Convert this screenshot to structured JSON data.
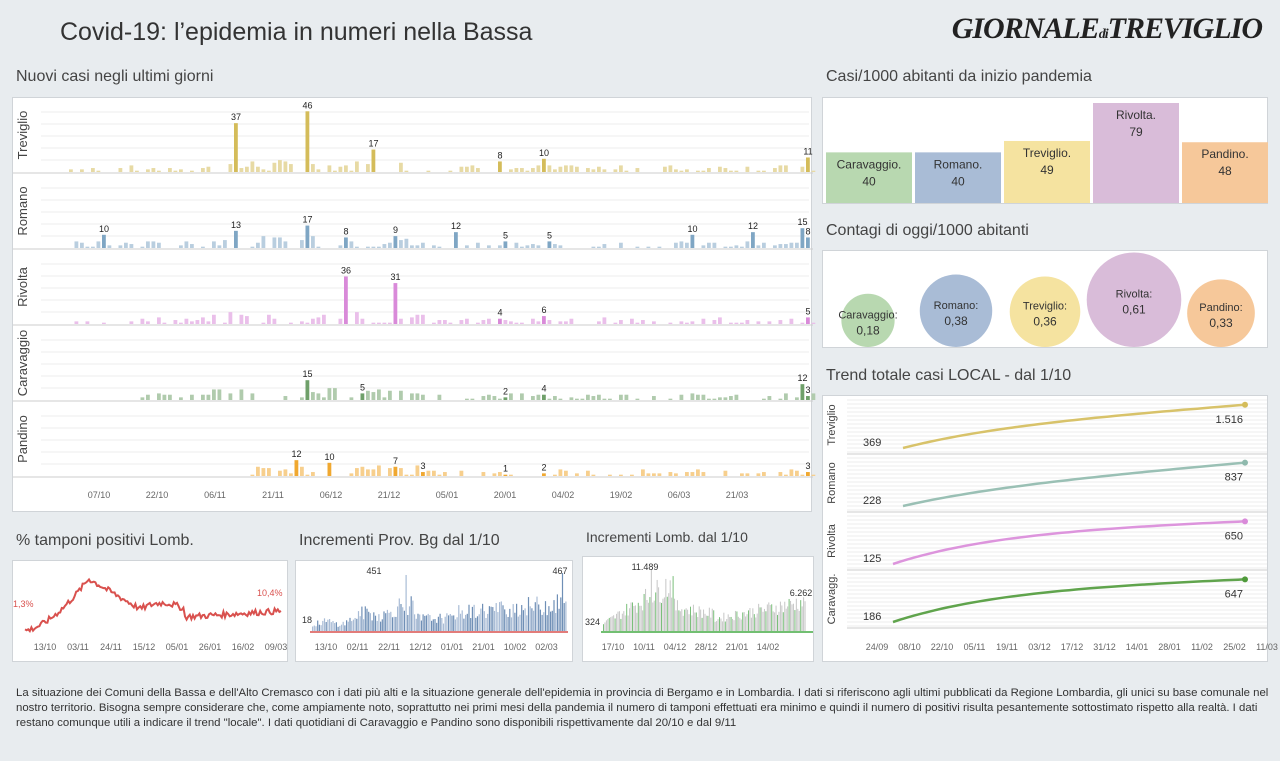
{
  "header": {
    "title": "Covid-19: l’epidemia  in numeri nella Bassa",
    "logo_main": "GIORNALE",
    "logo_di": "di",
    "logo_end": "TREVIGLIO"
  },
  "sections": {
    "new_cases": "Nuovi casi negli ultimi   giorni",
    "cases_1000": "Casi/1000 abitanti da inizio pandemia",
    "today_1000": "Contagi di oggi/1000 abitanti",
    "trend": "Trend totale casi  LOCAL - dal 1/10",
    "tamponi": "% tamponi positivi Lomb.",
    "prov_bg": "Incrementi Prov. Bg dal 1/10",
    "lomb": "Incrementi Lomb. dal 1/10"
  },
  "colors": {
    "Treviglio": "#d4bc5a",
    "Romano": "#7fa6c4",
    "Rivolta": "#d98ad9",
    "Caravaggio": "#6fa06a",
    "Pandino": "#f0a830"
  },
  "chart_data": [
    {
      "type": "bar",
      "id": "daily",
      "towns": [
        "Treviglio",
        "Romano",
        "Rivolta",
        "Caravaggio",
        "Pandino"
      ],
      "x_ticks": [
        "07/10",
        "22/10",
        "06/11",
        "21/11",
        "06/12",
        "21/12",
        "05/01",
        "20/01",
        "04/02",
        "19/02",
        "06/03",
        "21/03"
      ],
      "annotations": {
        "Treviglio": [
          {
            "d": 30,
            "v": 37
          },
          {
            "d": 43,
            "v": 46
          },
          {
            "d": 55,
            "v": 17
          },
          {
            "d": 78,
            "v": 8
          },
          {
            "d": 86,
            "v": 10
          },
          {
            "d": 134,
            "v": 11
          }
        ],
        "Romano": [
          {
            "d": 6,
            "v": 10
          },
          {
            "d": 30,
            "v": 13
          },
          {
            "d": 43,
            "v": 17
          },
          {
            "d": 50,
            "v": 8
          },
          {
            "d": 59,
            "v": 9
          },
          {
            "d": 70,
            "v": 12
          },
          {
            "d": 79,
            "v": 5
          },
          {
            "d": 87,
            "v": 5
          },
          {
            "d": 113,
            "v": 10
          },
          {
            "d": 124,
            "v": 12
          },
          {
            "d": 133,
            "v": 15
          },
          {
            "d": 134,
            "v": 8
          }
        ],
        "Rivolta": [
          {
            "d": 50,
            "v": 36
          },
          {
            "d": 59,
            "v": 31
          },
          {
            "d": 78,
            "v": 4
          },
          {
            "d": 86,
            "v": 6
          },
          {
            "d": 134,
            "v": 5
          }
        ],
        "Caravaggio": [
          {
            "d": 43,
            "v": 15
          },
          {
            "d": 53,
            "v": 5
          },
          {
            "d": 79,
            "v": 2
          },
          {
            "d": 86,
            "v": 4
          },
          {
            "d": 133,
            "v": 12
          },
          {
            "d": 134,
            "v": 3
          }
        ],
        "Pandino": [
          {
            "d": 41,
            "v": 12
          },
          {
            "d": 47,
            "v": 10
          },
          {
            "d": 59,
            "v": 7
          },
          {
            "d": 64,
            "v": 3
          },
          {
            "d": 79,
            "v": 1
          },
          {
            "d": 86,
            "v": 2
          },
          {
            "d": 134,
            "v": 3
          }
        ]
      }
    },
    {
      "type": "bar",
      "id": "cases_per_1000",
      "categories": [
        "Caravaggio.",
        "Romano.",
        "Treviglio.",
        "Rivolta.",
        "Pandino."
      ],
      "values": [
        40,
        40,
        49,
        79,
        48
      ]
    },
    {
      "type": "scatter",
      "id": "today_per_1000",
      "categories": [
        "Caravaggio:",
        "Romano:",
        "Treviglio:",
        "Rivolta:",
        "Pandino:"
      ],
      "values": [
        "0,18",
        "0,38",
        "0,36",
        "0,61",
        "0,33"
      ],
      "numeric": [
        0.18,
        0.38,
        0.36,
        0.61,
        0.33
      ]
    },
    {
      "type": "line",
      "id": "trend",
      "towns": [
        "Treviglio",
        "Romano",
        "Rivolta",
        "Caravagg."
      ],
      "start": [
        "369",
        "228",
        "125",
        "186"
      ],
      "end": [
        "1.516",
        "837",
        "650",
        "647"
      ],
      "x_ticks": [
        "24/09",
        "08/10",
        "22/10",
        "05/11",
        "19/11",
        "03/12",
        "17/12",
        "31/12",
        "14/01",
        "28/01",
        "11/02",
        "25/02",
        "11/03"
      ]
    },
    {
      "type": "line",
      "id": "tamponi",
      "first_label": "1,3%",
      "last_label": "10,4%",
      "x_ticks": [
        "13/10",
        "03/11",
        "24/11",
        "15/12",
        "05/01",
        "26/01",
        "16/02",
        "09/03"
      ]
    },
    {
      "type": "bar",
      "id": "prov_bg",
      "first_label": "18",
      "peak_label": "451",
      "last_label": "467",
      "x_ticks": [
        "13/10",
        "02/11",
        "22/11",
        "12/12",
        "01/01",
        "21/01",
        "10/02",
        "02/03"
      ]
    },
    {
      "type": "bar",
      "id": "lomb",
      "first_label": "324",
      "peak_label": "11.489",
      "last_label": "6.262",
      "x_ticks": [
        "17/10",
        "10/11",
        "04/12",
        "28/12",
        "21/01",
        "14/02"
      ]
    }
  ],
  "footer": "La situazione dei Comuni della Bassa e dell'Alto Cremasco con i dati più alti e la situazione generale dell'epidemia in provincia di Bergamo e in Lombardia.  I dati si riferiscono agli ultimi pubblicati da Regione Lombardia, gli unici su base comunale nel  nostro territorio.  Bisogna sempre considerare che, come ampiamente noto, soprattutto nei primi mesi della pandemia il numero di tamponi effettuati era minimo e quindi il numero di positivi risulta pesantemente sottostimato rispetto alla realtà. I dati restano comunque utili a indicare il trend \"locale\".  I dati quotidiani di Caravaggio e Pandino sono disponibili rispettivamente dal 20/10 e dal 9/11"
}
